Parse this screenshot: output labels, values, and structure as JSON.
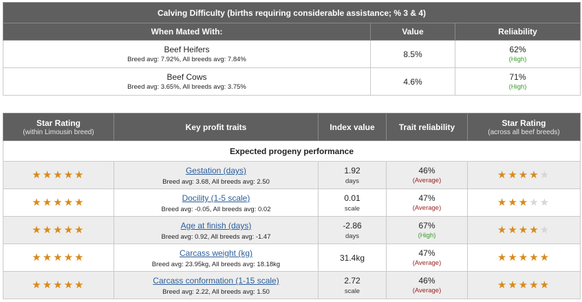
{
  "calving": {
    "title": "Calving Difficulty (births requiring considerable assistance; % 3 & 4)",
    "col_mated": "When Mated With:",
    "col_value": "Value",
    "col_reliability": "Reliability",
    "rows": [
      {
        "name": "Beef Heifers",
        "avg": "Breed avg: 7.92%, All breeds avg: 7.84%",
        "value": "8.5%",
        "reliability": "62%",
        "rel_label": "(High)"
      },
      {
        "name": "Beef Cows",
        "avg": "Breed avg: 3.65%, All breeds avg: 3.75%",
        "value": "4.6%",
        "reliability": "71%",
        "rel_label": "(High)"
      }
    ]
  },
  "traits": {
    "col_star_rating": "Star Rating",
    "col_star_rating_sub": "(within Limousin breed)",
    "col_key_traits": "Key profit traits",
    "col_index": "Index value",
    "col_trait_rel": "Trait reliability",
    "col_star_rating2": "Star Rating",
    "col_star_rating2_sub": "(across all beef breeds)",
    "section_label": "Expected progeny performance",
    "rows": [
      {
        "trait": "Gestation (days)",
        "avg": "Breed avg: 3.68, All breeds avg: 2.50",
        "index": "1.92",
        "unit": "days",
        "reliability": "46%",
        "rel_label": "(Average)",
        "rel_class": "rel-avg",
        "stars_breed": 5,
        "stars_all": 4
      },
      {
        "trait": "Docility (1-5 scale)",
        "avg": "Breed avg: -0.05, All breeds avg: 0.02",
        "index": "0.01",
        "unit": "scale",
        "reliability": "47%",
        "rel_label": "(Average)",
        "rel_class": "rel-avg",
        "stars_breed": 5,
        "stars_all": 3
      },
      {
        "trait": "Age at finish (days)",
        "avg": "Breed avg: 0.92, All breeds avg: -1.47",
        "index": "-2.86",
        "unit": "days",
        "reliability": "67%",
        "rel_label": "(High)",
        "rel_class": "rel-high",
        "stars_breed": 5,
        "stars_all": 4
      },
      {
        "trait": "Carcass weight (kg)",
        "avg": "Breed avg: 23.95kg, All breeds avg: 18.18kg",
        "index": "31.4kg",
        "unit": "",
        "reliability": "47%",
        "rel_label": "(Average)",
        "rel_class": "rel-avg",
        "stars_breed": 5,
        "stars_all": 5
      },
      {
        "trait": "Carcass conformation (1-15 scale)",
        "avg": "Breed avg: 2.22, All breeds avg: 1.50",
        "index": "2.72",
        "unit": "scale",
        "reliability": "46%",
        "rel_label": "(Average)",
        "rel_class": "rel-avg",
        "stars_breed": 5,
        "stars_all": 5
      }
    ]
  },
  "colors": {
    "header_bg": "#5f5f5f",
    "star_on": "#d98a1a",
    "star_off": "#d6d6d6",
    "link": "#2a5d9a",
    "high": "#3a9a2a",
    "average": "#9a1f1f"
  }
}
